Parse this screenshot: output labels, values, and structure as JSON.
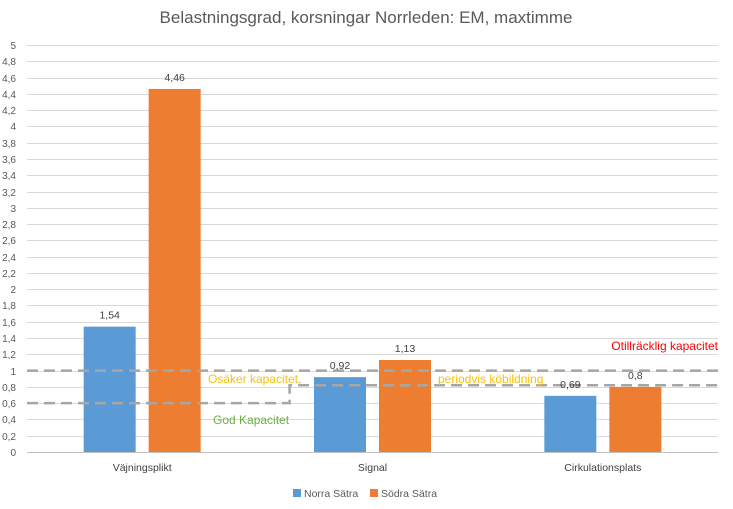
{
  "chart_data": {
    "type": "bar",
    "title": "Belastningsgrad, korsningar Norrleden: EM, maxtimme",
    "categories": [
      "Väjningsplikt",
      "Signal",
      "Cirkulationsplats"
    ],
    "series": [
      {
        "name": "Norra Sätra",
        "color": "#5b9bd5",
        "values": [
          1.54,
          0.92,
          0.69
        ],
        "labels": [
          "1,54",
          "0,92",
          "0,69"
        ]
      },
      {
        "name": "Södra Sätra",
        "color": "#ed7d31",
        "values": [
          4.46,
          1.13,
          0.8
        ],
        "labels": [
          "4,46",
          "1,13",
          "0,8"
        ]
      }
    ],
    "ylim": [
      0,
      5
    ],
    "ytick_step": 0.2,
    "yticks": [
      "0",
      "0,2",
      "0,4",
      "0,6",
      "0,8",
      "1",
      "1,2",
      "1,4",
      "1,6",
      "1,8",
      "2",
      "2,2",
      "2,4",
      "2,6",
      "2,8",
      "3",
      "3,2",
      "3,4",
      "3,6",
      "3,8",
      "4",
      "4,2",
      "4,4",
      "4,6",
      "4,8",
      "5"
    ],
    "grid": true,
    "legend_position": "bottom",
    "thresholds": [
      {
        "name": "threshold-line-1-0",
        "value": 1.0,
        "color": "#a6a6a6"
      },
      {
        "name": "threshold-line-good",
        "color": "#a6a6a6",
        "points": [
          [
            0,
            0.6
          ],
          [
            0.38,
            0.6
          ],
          [
            0.38,
            0.82
          ],
          [
            1,
            0.82
          ]
        ]
      }
    ],
    "annotations": [
      {
        "name": "annotation-otillracklig",
        "text": "Otillräcklig kapacitet",
        "color": "#ff0000"
      },
      {
        "name": "annotation-osaker",
        "text": "Osäker kapacitet,",
        "color": "#ffc000"
      },
      {
        "name": "annotation-periodvis",
        "text": "periodvis köbildning",
        "color": "#ffc000"
      },
      {
        "name": "annotation-god",
        "text": "God Kapacitet",
        "color": "#70ad47"
      }
    ]
  }
}
